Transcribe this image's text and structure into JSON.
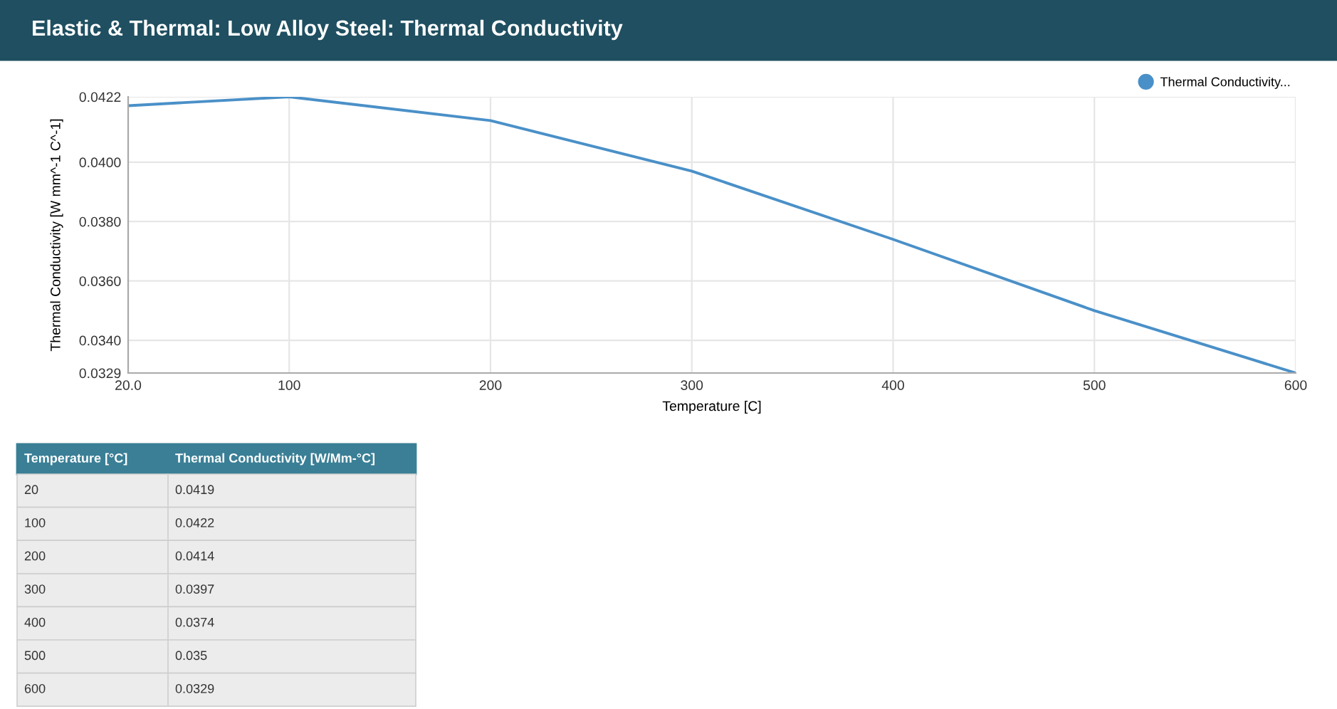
{
  "chart_data": [
    {
      "type": "line",
      "title": "Elastic & Thermal: Low Alloy Steel: Thermal Conductivity",
      "xlabel": "Temperature [C]",
      "ylabel": "Thermal Conductivity [W mm^-1 C^-1]",
      "x": [
        20,
        100,
        200,
        300,
        400,
        500,
        600
      ],
      "series": [
        {
          "name": "Thermal Conductivity...",
          "color": "#4a90c8",
          "values": [
            0.0419,
            0.0422,
            0.0414,
            0.0397,
            0.0374,
            0.035,
            0.0329
          ]
        }
      ],
      "xlim": [
        20,
        600
      ],
      "xticks": [
        {
          "value": 20,
          "label": "20.0"
        },
        100,
        200,
        300,
        400,
        500,
        600
      ],
      "ylim": [
        0.0329,
        0.0422
      ],
      "yticks": [
        0.0329,
        {
          "value": 0.034,
          "label": "0.0340"
        },
        {
          "value": 0.036,
          "label": "0.0360"
        },
        {
          "value": 0.038,
          "label": "0.0380"
        },
        {
          "value": 0.04,
          "label": "0.0400"
        },
        0.0422
      ],
      "grid": true,
      "legend": "top right",
      "marker": "none",
      "line_style": "solid"
    },
    {
      "type": "other",
      "annotations": [
        "Temperature [°C]",
        "Thermal Conductivity [W/Mm-°C]",
        "20",
        "0.0419",
        "100",
        "0.0422",
        "200",
        "0.0414",
        "300",
        "0.0397",
        "400",
        "0.0374",
        "500",
        "0.035",
        "600",
        "0.0329"
      ]
    }
  ]
}
